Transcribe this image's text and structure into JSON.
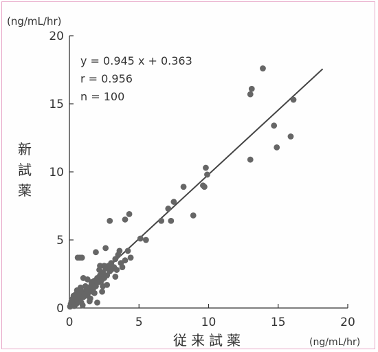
{
  "chart_data": {
    "type": "scatter",
    "y_unit_label": "(ng/mL/hr)",
    "x_unit_label": "(ng/mL/hr)",
    "ylabel": "新試薬",
    "xlabel": "従来試薬",
    "xlim": [
      0,
      20
    ],
    "ylim": [
      0,
      20
    ],
    "x_ticks": [
      "0",
      "5",
      "10",
      "15",
      "20"
    ],
    "y_ticks": [
      "0",
      "5",
      "10",
      "15",
      "20"
    ],
    "annotations": [
      "y = 0.945 x + 0.363",
      "r = 0.956",
      "n = 100"
    ],
    "regression": {
      "slope": 0.945,
      "intercept": 0.363,
      "x_range": [
        0,
        18.2
      ]
    },
    "grid": false,
    "legend": "none",
    "point_color": "#666666",
    "line_color": "#444444",
    "points": [
      [
        0.05,
        0.1
      ],
      [
        0.1,
        0.3
      ],
      [
        0.15,
        0.5
      ],
      [
        0.2,
        0.2
      ],
      [
        0.25,
        0.7
      ],
      [
        0.3,
        0.4
      ],
      [
        0.3,
        0.9
      ],
      [
        0.4,
        0.6
      ],
      [
        0.45,
        1.0
      ],
      [
        0.5,
        0.3
      ],
      [
        0.55,
        0.8
      ],
      [
        0.6,
        0.5
      ],
      [
        0.65,
        1.1
      ],
      [
        0.7,
        0.6
      ],
      [
        0.8,
        0.9
      ],
      [
        0.85,
        0.4
      ],
      [
        0.9,
        1.2
      ],
      [
        1.0,
        0.8
      ],
      [
        1.1,
        1.0
      ],
      [
        1.2,
        1.3
      ],
      [
        1.3,
        0.9
      ],
      [
        1.4,
        1.5
      ],
      [
        1.5,
        1.2
      ],
      [
        1.6,
        1.8
      ],
      [
        1.7,
        1.4
      ],
      [
        1.8,
        2.0
      ],
      [
        1.9,
        1.6
      ],
      [
        2.0,
        2.2
      ],
      [
        2.0,
        0.4
      ],
      [
        2.1,
        1.9
      ],
      [
        2.2,
        2.4
      ],
      [
        2.3,
        2.0
      ],
      [
        2.4,
        2.6
      ],
      [
        2.5,
        2.2
      ],
      [
        2.6,
        2.9
      ],
      [
        2.7,
        2.4
      ],
      [
        2.8,
        3.1
      ],
      [
        2.9,
        2.7
      ],
      [
        3.0,
        3.3
      ],
      [
        3.1,
        2.9
      ],
      [
        3.2,
        3.0
      ],
      [
        3.3,
        3.6
      ],
      [
        3.4,
        2.8
      ],
      [
        3.5,
        3.9
      ],
      [
        3.6,
        4.2
      ],
      [
        3.8,
        3.0
      ],
      [
        4.0,
        3.5
      ],
      [
        4.2,
        4.2
      ],
      [
        0.6,
        3.7
      ],
      [
        0.75,
        3.7
      ],
      [
        0.9,
        3.7
      ],
      [
        1.0,
        2.2
      ],
      [
        1.3,
        2.1
      ],
      [
        1.6,
        1.9
      ],
      [
        1.9,
        4.1
      ],
      [
        2.6,
        4.4
      ],
      [
        2.2,
        3.1
      ],
      [
        2.5,
        3.1
      ],
      [
        2.8,
        3.0
      ],
      [
        3.0,
        2.8
      ],
      [
        2.4,
        1.6
      ],
      [
        1.8,
        1.1
      ],
      [
        1.5,
        0.7
      ],
      [
        2.7,
        1.7
      ],
      [
        3.3,
        2.3
      ],
      [
        2.9,
        6.4
      ],
      [
        4.0,
        6.5
      ],
      [
        4.3,
        6.9
      ],
      [
        5.1,
        5.1
      ],
      [
        5.5,
        5.0
      ],
      [
        6.6,
        6.4
      ],
      [
        7.1,
        7.3
      ],
      [
        7.3,
        6.4
      ],
      [
        7.5,
        7.8
      ],
      [
        8.2,
        8.9
      ],
      [
        8.9,
        6.8
      ],
      [
        9.6,
        9.0
      ],
      [
        9.7,
        8.9
      ],
      [
        9.8,
        10.3
      ],
      [
        9.9,
        9.8
      ],
      [
        13.0,
        10.9
      ],
      [
        13.0,
        15.7
      ],
      [
        13.1,
        16.1
      ],
      [
        13.9,
        17.6
      ],
      [
        14.7,
        13.4
      ],
      [
        14.9,
        11.8
      ],
      [
        15.9,
        12.6
      ],
      [
        16.1,
        15.3
      ],
      [
        0.2,
        0.6
      ],
      [
        0.35,
        0.15
      ],
      [
        0.55,
        1.3
      ],
      [
        0.95,
        0.2
      ],
      [
        1.15,
        1.6
      ],
      [
        1.45,
        0.5
      ],
      [
        2.15,
        2.8
      ],
      [
        2.35,
        1.2
      ],
      [
        3.7,
        3.3
      ],
      [
        4.4,
        3.7
      ],
      [
        1.25,
        1.1
      ],
      [
        0.8,
        1.5
      ]
    ]
  }
}
